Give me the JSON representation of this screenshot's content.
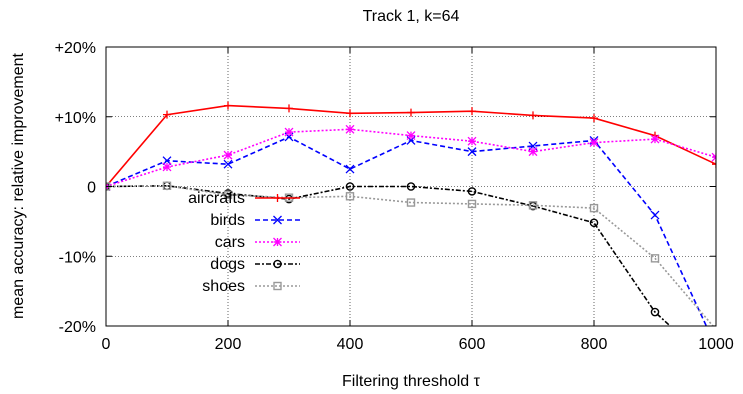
{
  "chart_data": {
    "type": "line",
    "title": "Track 1, k=64",
    "xlabel": "Filtering threshold τ",
    "ylabel": "mean accuracy: relative improvement",
    "xlim": [
      0,
      1000
    ],
    "ylim": [
      -20,
      20
    ],
    "xticks": [
      0,
      200,
      400,
      600,
      800,
      1000
    ],
    "xtick_labels": [
      "0",
      "200",
      "400",
      "600",
      "800",
      "1000"
    ],
    "yticks": [
      20,
      10,
      0,
      -10,
      -20
    ],
    "ytick_labels": [
      "+20%",
      "+10%",
      "0",
      "-10%",
      "-20%"
    ],
    "grid": true,
    "legend_position": "lower-left",
    "x": [
      0,
      100,
      200,
      300,
      400,
      500,
      600,
      700,
      800,
      900,
      1000
    ],
    "series": [
      {
        "name": "aircrafts",
        "color": "#ff0000",
        "dash": "solid",
        "marker": "plus",
        "values": [
          0,
          10.3,
          11.6,
          11.2,
          10.5,
          10.6,
          10.8,
          10.2,
          9.8,
          7.3,
          3.2
        ]
      },
      {
        "name": "birds",
        "color": "#0000ff",
        "dash": "dashed",
        "marker": "cross",
        "values": [
          0,
          3.7,
          3.2,
          7.1,
          2.5,
          6.6,
          5.0,
          5.8,
          6.6,
          -4.1,
          -23
        ]
      },
      {
        "name": "cars",
        "color": "#ff00ff",
        "dash": "dotted",
        "marker": "star",
        "values": [
          0,
          2.8,
          4.5,
          7.8,
          8.2,
          7.3,
          6.5,
          5.0,
          6.3,
          6.8,
          4.2
        ]
      },
      {
        "name": "dogs",
        "color": "#000000",
        "dash": "dashdot",
        "marker": "circle",
        "values": [
          0,
          0.1,
          -1.0,
          -1.8,
          0.0,
          0.0,
          -0.7,
          -2.8,
          -5.2,
          -18.0,
          -26
        ]
      },
      {
        "name": "shoes",
        "color": "#999999",
        "dash": "dotted",
        "marker": "square",
        "values": [
          0,
          0.1,
          -1.2,
          -1.6,
          -1.4,
          -2.3,
          -2.5,
          -2.7,
          -3.1,
          -10.3,
          -20.5
        ]
      }
    ]
  }
}
